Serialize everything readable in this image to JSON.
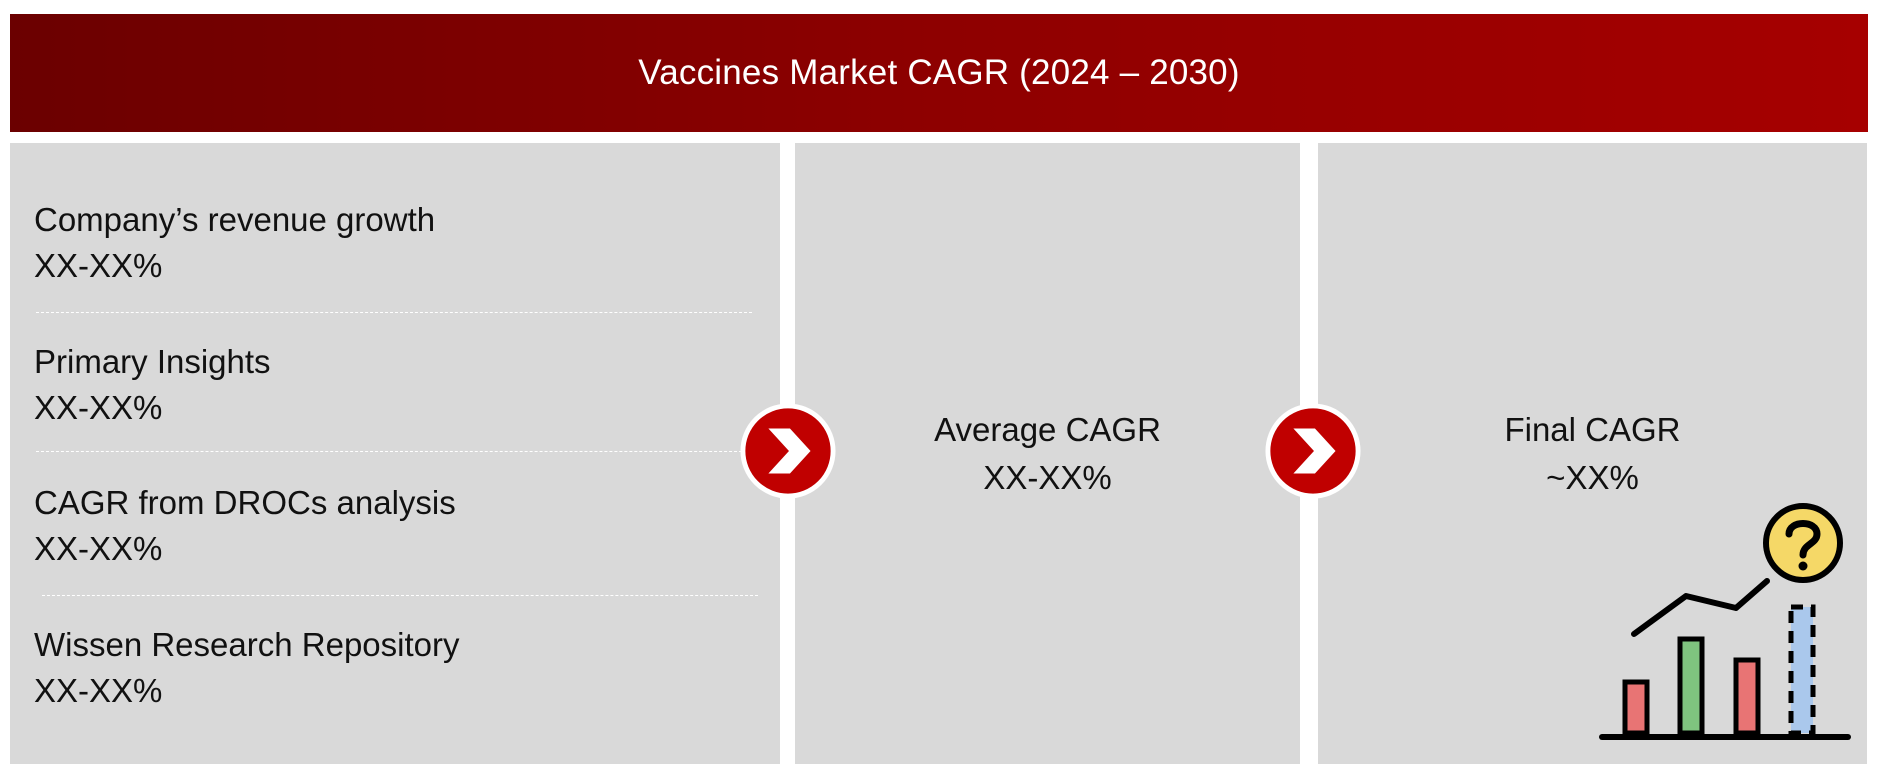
{
  "header": {
    "title": "Vaccines Market CAGR (2024 – 2030)"
  },
  "sources": [
    {
      "label": "Company’s revenue growth",
      "value": "XX-XX%"
    },
    {
      "label": "Primary Insights",
      "value": "XX-XX%"
    },
    {
      "label": "CAGR from DROCs analysis",
      "value": "XX-XX%"
    },
    {
      "label": "Wissen Research Repository",
      "value": "XX-XX%"
    }
  ],
  "average": {
    "label": "Average CAGR",
    "value": "XX-XX%"
  },
  "final": {
    "label": "Final CAGR",
    "value": "~XX%"
  },
  "colors": {
    "header_start": "#6b0000",
    "header_end": "#a60000",
    "panel": "#d9d9d9",
    "arrow_badge": "#c00000"
  },
  "icons": {
    "arrow": "chevron-right-icon",
    "chart": "growth-chart-question-icon"
  }
}
